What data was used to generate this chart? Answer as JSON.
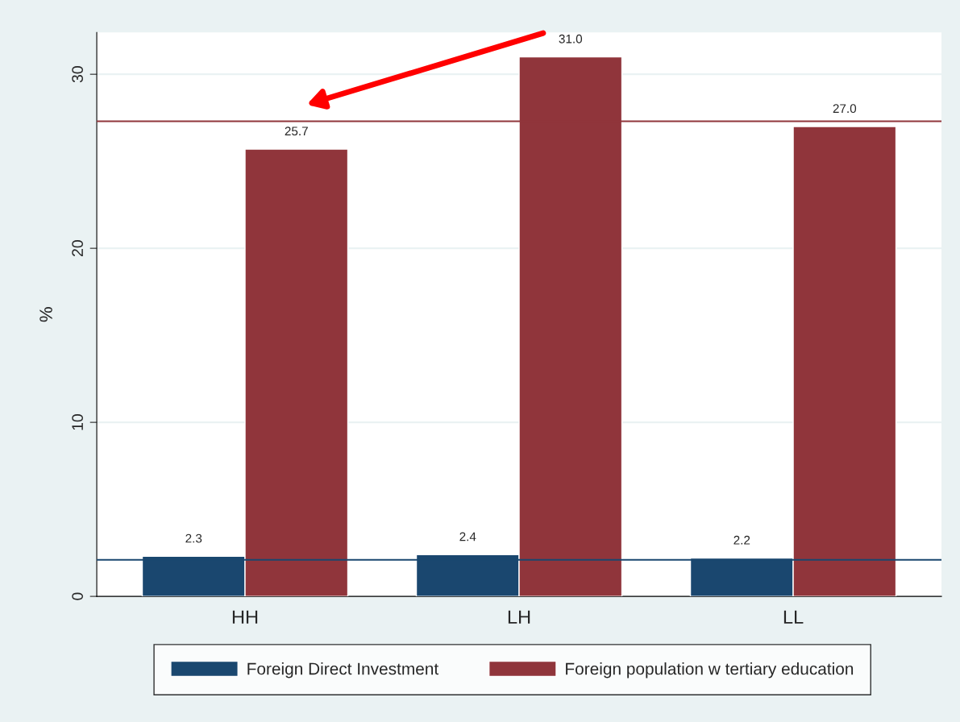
{
  "chart_data": {
    "type": "bar",
    "categories": [
      "HH",
      "LH",
      "LL"
    ],
    "series": [
      {
        "name": "Foreign Direct Investment",
        "color": "#1a476f",
        "values": [
          2.3,
          2.4,
          2.2
        ],
        "value_labels": [
          "2.3",
          "2.4",
          "2.2"
        ]
      },
      {
        "name": "Foreign population w tertiary education",
        "color": "#90353b",
        "values": [
          25.7,
          31.0,
          27.0
        ],
        "value_labels": [
          "25.7",
          "31.0",
          "27.0"
        ]
      }
    ],
    "ylabel": "%",
    "ylim": [
      0,
      32.4
    ],
    "yticks": [
      0,
      10,
      20,
      30
    ],
    "grid": "y",
    "legend": "bottom",
    "ref_lines": [
      {
        "axis": "y",
        "value": 27.3,
        "color": "#90353b"
      },
      {
        "axis": "y",
        "value": 2.1,
        "color": "#1a476f"
      }
    ]
  }
}
